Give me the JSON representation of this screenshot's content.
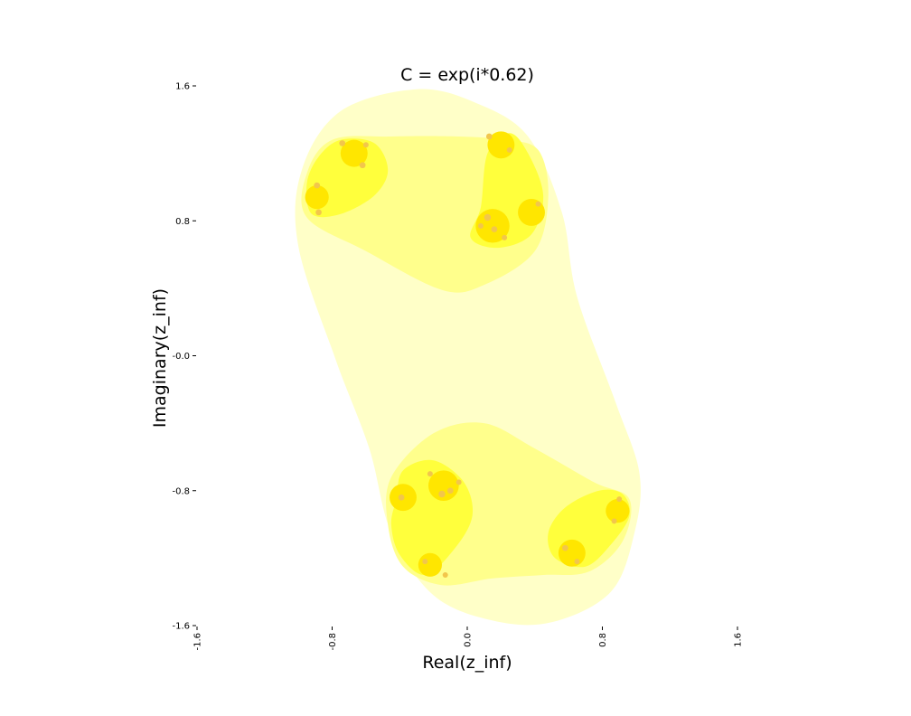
{
  "chart_data": {
    "type": "heatmap",
    "title": "C = exp(i*0.62)",
    "xlabel": "Real(z_inf)",
    "ylabel": "Imaginary(z_inf)",
    "xlim": [
      -1.6,
      1.6
    ],
    "ylim": [
      -1.6,
      1.6
    ],
    "x_ticks": [
      "-1.6",
      "-0.8",
      "0.0",
      "0.8",
      "1.6"
    ],
    "y_ticks": [
      "1.6",
      "0.8",
      "-0.0",
      "-0.8",
      "-1.6"
    ],
    "grid": false,
    "colors": {
      "outer": "#ffffc8",
      "level2": "#ffff8c",
      "level3": "#ffff3c",
      "level4": "#ffe600",
      "core": "#f2c64c"
    }
  }
}
